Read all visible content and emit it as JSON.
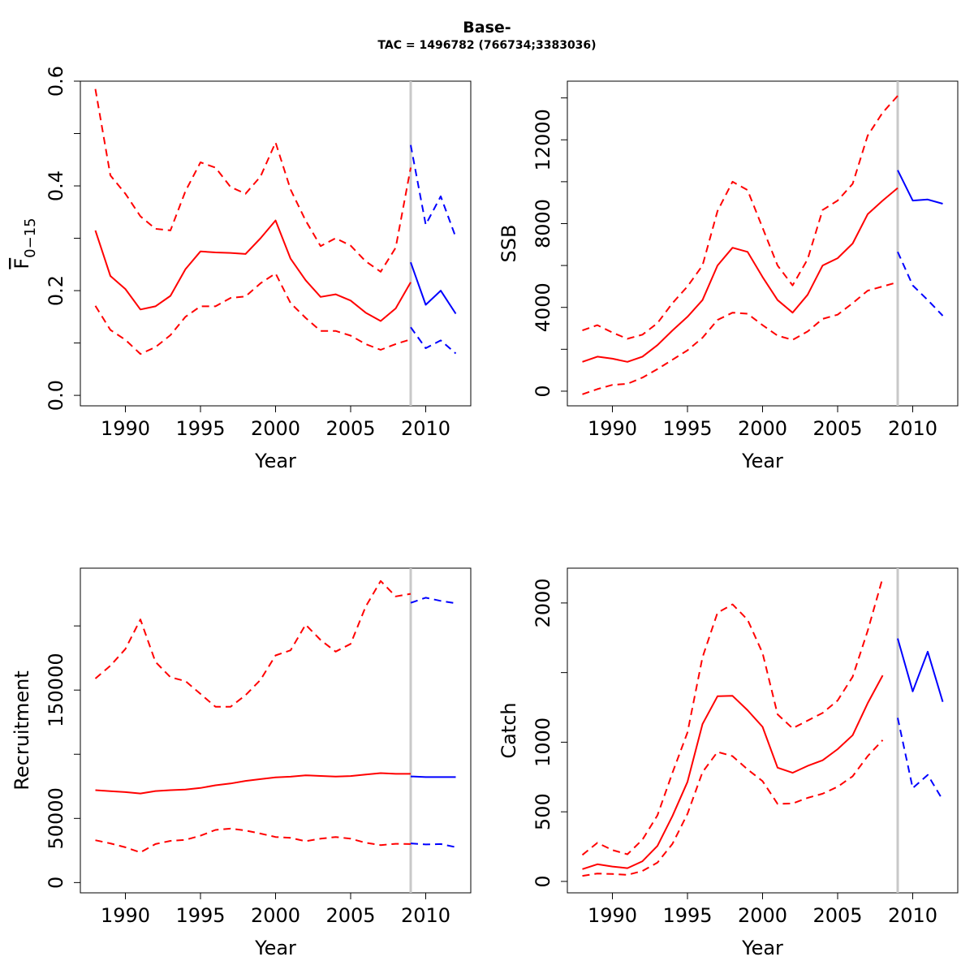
{
  "figure": {
    "title": "Base-",
    "subtitle": "TAC = 1496782 (766734;3383036)"
  },
  "colors": {
    "historic": "#ff0000",
    "projection": "#0000ff",
    "divider": "#c8c8c8",
    "axes": "#000000"
  },
  "chart_data": [
    {
      "type": "line",
      "xlabel": "Year",
      "ylabel": "F̅ 0-15",
      "ylabel_main": "F",
      "ylabel_sub": "0−15",
      "xlim": [
        1987,
        2013
      ],
      "ylim": [
        -0.02,
        0.6
      ],
      "xticks": [
        1990,
        1995,
        2000,
        2005,
        2010
      ],
      "yticks": [
        0.0,
        0.1,
        0.2,
        0.3,
        0.4,
        0.5,
        0.6
      ],
      "ytick_labels": [
        "0.0",
        "",
        "0.2",
        "",
        "0.4",
        "",
        "0.6"
      ],
      "divider_x": 2009,
      "series": [
        {
          "x": [
            1988,
            1989,
            1990,
            1991,
            1992,
            1993,
            1994,
            1995,
            1996,
            1997,
            1998,
            1999,
            2000,
            2001,
            2002,
            2003,
            2004,
            2005,
            2006,
            2007,
            2008,
            2009
          ],
          "values": [
            0.315,
            0.228,
            0.203,
            0.164,
            0.17,
            0.19,
            0.241,
            0.275,
            0.273,
            0.272,
            0.27,
            0.3,
            0.334,
            0.261,
            0.22,
            0.188,
            0.193,
            0.181,
            0.158,
            0.142,
            0.166,
            0.216
          ],
          "style": "solid",
          "color": "historic"
        },
        {
          "x": [
            1988,
            1989,
            1990,
            1991,
            1992,
            1993,
            1994,
            1995,
            1996,
            1997,
            1998,
            1999,
            2000,
            2001,
            2002,
            2003,
            2004,
            2005,
            2006,
            2007,
            2008,
            2009
          ],
          "values": [
            0.585,
            0.42,
            0.385,
            0.342,
            0.318,
            0.315,
            0.39,
            0.445,
            0.435,
            0.398,
            0.385,
            0.418,
            0.483,
            0.393,
            0.334,
            0.285,
            0.3,
            0.286,
            0.256,
            0.236,
            0.282,
            0.435
          ],
          "style": "dashed",
          "color": "historic"
        },
        {
          "x": [
            1988,
            1989,
            1990,
            1991,
            1992,
            1993,
            1994,
            1995,
            1996,
            1997,
            1998,
            1999,
            2000,
            2001,
            2002,
            2003,
            2004,
            2005,
            2006,
            2007,
            2008,
            2009
          ],
          "values": [
            0.171,
            0.125,
            0.106,
            0.079,
            0.092,
            0.115,
            0.15,
            0.17,
            0.17,
            0.186,
            0.189,
            0.214,
            0.233,
            0.176,
            0.148,
            0.123,
            0.123,
            0.114,
            0.098,
            0.087,
            0.098,
            0.107
          ],
          "style": "dashed",
          "color": "historic"
        },
        {
          "x": [
            2009,
            2010,
            2011,
            2012
          ],
          "values": [
            0.254,
            0.173,
            0.2,
            0.156
          ],
          "style": "solid",
          "color": "projection"
        },
        {
          "x": [
            2009,
            2010,
            2011,
            2012
          ],
          "values": [
            0.478,
            0.326,
            0.38,
            0.302
          ],
          "style": "dashed",
          "color": "projection"
        },
        {
          "x": [
            2009,
            2010,
            2011,
            2012
          ],
          "values": [
            0.13,
            0.09,
            0.105,
            0.08
          ],
          "style": "dashed",
          "color": "projection"
        }
      ]
    },
    {
      "type": "line",
      "xlabel": "Year",
      "ylabel": "SSB",
      "xlim": [
        1987,
        2013
      ],
      "ylim": [
        -700,
        14800
      ],
      "xticks": [
        1990,
        1995,
        2000,
        2005,
        2010
      ],
      "yticks": [
        0,
        2000,
        4000,
        6000,
        8000,
        10000,
        12000,
        14000
      ],
      "ytick_labels": [
        "0",
        "",
        "4000",
        "",
        "8000",
        "",
        "12000",
        ""
      ],
      "divider_x": 2009,
      "series": [
        {
          "x": [
            1988,
            1989,
            1990,
            1991,
            1992,
            1993,
            1994,
            1995,
            1996,
            1997,
            1998,
            1999,
            2000,
            2001,
            2002,
            2003,
            2004,
            2005,
            2006,
            2007,
            2008,
            2009
          ],
          "values": [
            1400,
            1650,
            1550,
            1400,
            1650,
            2200,
            2900,
            3550,
            4350,
            6000,
            6850,
            6650,
            5450,
            4350,
            3750,
            4600,
            6000,
            6350,
            7050,
            8450,
            9100,
            9700
          ],
          "style": "solid",
          "color": "historic"
        },
        {
          "x": [
            1988,
            1989,
            1990,
            1991,
            1992,
            1993,
            1994,
            1995,
            1996,
            1997,
            1998,
            1999,
            2000,
            2001,
            2002,
            2003,
            2004,
            2005,
            2006,
            2007,
            2008,
            2009
          ],
          "values": [
            2900,
            3150,
            2800,
            2500,
            2700,
            3250,
            4200,
            5000,
            6000,
            8600,
            10000,
            9600,
            7800,
            6000,
            5050,
            6300,
            8650,
            9100,
            9900,
            12200,
            13300,
            14100
          ],
          "style": "dashed",
          "color": "historic"
        },
        {
          "x": [
            1988,
            1989,
            1990,
            1991,
            1992,
            1993,
            1994,
            1995,
            1996,
            1997,
            1998,
            1999,
            2000,
            2001,
            2002,
            2003,
            2004,
            2005,
            2006,
            2007,
            2008,
            2009
          ],
          "values": [
            -150,
            100,
            300,
            350,
            650,
            1050,
            1500,
            1950,
            2550,
            3400,
            3750,
            3700,
            3150,
            2650,
            2450,
            2850,
            3450,
            3650,
            4200,
            4800,
            5000,
            5200
          ],
          "style": "dashed",
          "color": "historic"
        },
        {
          "x": [
            2009,
            2010,
            2011,
            2012
          ],
          "values": [
            10550,
            9100,
            9150,
            8950
          ],
          "style": "solid",
          "color": "projection"
        },
        {
          "x": [
            2009,
            2010,
            2011,
            2012
          ],
          "values": [
            6650,
            5050,
            4350,
            3600
          ],
          "style": "dashed",
          "color": "projection"
        }
      ]
    },
    {
      "type": "line",
      "xlabel": "Year",
      "ylabel": "Recruitment",
      "xlim": [
        1987,
        2013
      ],
      "ylim": [
        -8000,
        245000
      ],
      "xticks": [
        1990,
        1995,
        2000,
        2005,
        2010
      ],
      "yticks": [
        0,
        50000,
        100000,
        150000,
        200000
      ],
      "ytick_labels": [
        "0",
        "50000",
        "",
        "150000",
        ""
      ],
      "divider_x": 2009,
      "series": [
        {
          "x": [
            1988,
            1989,
            1990,
            1991,
            1992,
            1993,
            1994,
            1995,
            1996,
            1997,
            1998,
            1999,
            2000,
            2001,
            2002,
            2003,
            2004,
            2005,
            2006,
            2007,
            2008,
            2009
          ],
          "values": [
            72000,
            71200,
            70500,
            69400,
            71300,
            72000,
            72500,
            73700,
            75800,
            77200,
            79200,
            80600,
            82000,
            82500,
            83600,
            83100,
            82600,
            83000,
            84200,
            85300,
            84700,
            84700
          ],
          "style": "solid",
          "color": "historic"
        },
        {
          "x": [
            1988,
            1989,
            1990,
            1991,
            1992,
            1993,
            1994,
            1995,
            1996,
            1997,
            1998,
            1999,
            2000,
            2001,
            2002,
            2003,
            2004,
            2005,
            2006,
            2007,
            2008,
            2009
          ],
          "values": [
            159000,
            169000,
            182000,
            205000,
            172000,
            160000,
            157000,
            147000,
            137000,
            137000,
            146000,
            158000,
            177000,
            181000,
            201000,
            189000,
            180000,
            186000,
            215000,
            235000,
            223000,
            225000
          ],
          "style": "dashed",
          "color": "historic"
        },
        {
          "x": [
            1988,
            1989,
            1990,
            1991,
            1992,
            1993,
            1994,
            1995,
            1996,
            1997,
            1998,
            1999,
            2000,
            2001,
            2002,
            2003,
            2004,
            2005,
            2006,
            2007,
            2008,
            2009
          ],
          "values": [
            33000,
            30500,
            27500,
            23500,
            30000,
            32500,
            33300,
            36500,
            41000,
            42000,
            40600,
            38200,
            35500,
            34800,
            32200,
            34200,
            35500,
            34200,
            31000,
            29200,
            30200,
            30000
          ],
          "style": "dashed",
          "color": "historic"
        },
        {
          "x": [
            2009,
            2010,
            2011,
            2012
          ],
          "values": [
            82700,
            82200,
            82200,
            82200
          ],
          "style": "solid",
          "color": "projection"
        },
        {
          "x": [
            2009,
            2010,
            2011,
            2012
          ],
          "values": [
            218000,
            222000,
            219500,
            217600
          ],
          "style": "dashed",
          "color": "projection"
        },
        {
          "x": [
            2009,
            2010,
            2011,
            2012
          ],
          "values": [
            30500,
            29700,
            30000,
            27600
          ],
          "style": "dashed",
          "color": "projection"
        }
      ]
    },
    {
      "type": "line",
      "xlabel": "Year",
      "ylabel": "Catch",
      "xlim": [
        1987,
        2013
      ],
      "ylim": [
        -82,
        2250
      ],
      "xticks": [
        1990,
        1995,
        2000,
        2005,
        2010
      ],
      "yticks": [
        0,
        500,
        1000,
        1500,
        2000
      ],
      "ytick_labels": [
        "0",
        "500",
        "1000",
        "",
        "2000"
      ],
      "divider_x": 2009,
      "series": [
        {
          "x": [
            1988,
            1989,
            1990,
            1991,
            1992,
            1993,
            1994,
            1995,
            1996,
            1997,
            1998,
            1999,
            2000,
            2001,
            2002,
            2003,
            2004,
            2005,
            2006,
            2007,
            2008
          ],
          "values": [
            88,
            123,
            107,
            95,
            145,
            255,
            470,
            715,
            1130,
            1330,
            1333,
            1230,
            1110,
            817,
            780,
            830,
            870,
            950,
            1050,
            1280,
            1480
          ],
          "style": "solid",
          "color": "historic"
        },
        {
          "x": [
            1988,
            1989,
            1990,
            1991,
            1992,
            1993,
            1994,
            1995,
            1996,
            1997,
            1998,
            1999,
            2000,
            2001,
            2002,
            2003,
            2004,
            2005,
            2006,
            2007,
            2008
          ],
          "values": [
            190,
            277,
            225,
            195,
            300,
            475,
            780,
            1070,
            1610,
            1930,
            1990,
            1880,
            1640,
            1200,
            1100,
            1155,
            1210,
            1300,
            1470,
            1800,
            2180
          ],
          "style": "dashed",
          "color": "historic"
        },
        {
          "x": [
            1988,
            1989,
            1990,
            1991,
            1992,
            1993,
            1994,
            1995,
            1996,
            1997,
            1998,
            1999,
            2000,
            2001,
            2002,
            2003,
            2004,
            2005,
            2006,
            2007,
            2008
          ],
          "values": [
            40,
            57,
            53,
            47,
            75,
            135,
            270,
            485,
            785,
            930,
            900,
            805,
            720,
            557,
            560,
            600,
            630,
            680,
            755,
            900,
            1015
          ],
          "style": "dashed",
          "color": "historic"
        },
        {
          "x": [
            2009,
            2010,
            2011,
            2012
          ],
          "values": [
            1745,
            1365,
            1650,
            1290
          ],
          "style": "solid",
          "color": "projection"
        },
        {
          "x": [
            2009,
            2010,
            2011,
            2012
          ],
          "values": [
            1175,
            670,
            765,
            585
          ],
          "style": "dashed",
          "color": "projection"
        }
      ]
    }
  ]
}
